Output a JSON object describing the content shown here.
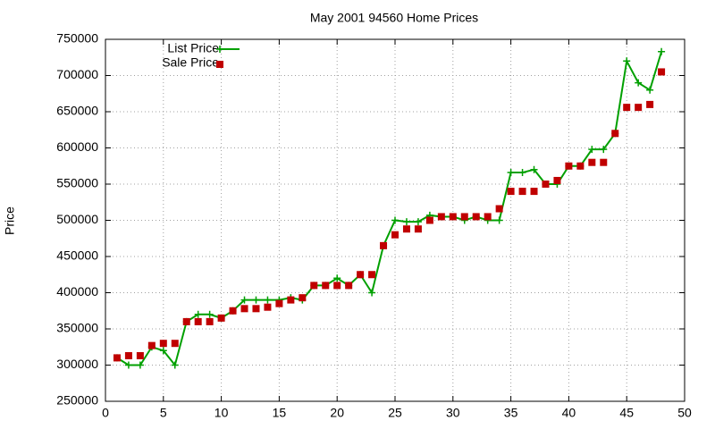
{
  "chart_data": {
    "type": "line",
    "title": "May 2001 94560 Home Prices",
    "y_label": "Price",
    "x": [
      1,
      2,
      3,
      4,
      5,
      6,
      7,
      8,
      9,
      10,
      11,
      12,
      13,
      14,
      15,
      16,
      17,
      18,
      19,
      20,
      21,
      22,
      23,
      24,
      25,
      26,
      27,
      28,
      29,
      30,
      31,
      32,
      33,
      34,
      35,
      36,
      37,
      38,
      39,
      40,
      41,
      42,
      43,
      44,
      45,
      46,
      47,
      48
    ],
    "series": [
      {
        "name": "List Price",
        "color": "#00a000",
        "style": "linespoints",
        "values": [
          310000,
          300000,
          300000,
          325000,
          320000,
          300000,
          360000,
          370000,
          370000,
          365000,
          375000,
          390000,
          390000,
          390000,
          390000,
          393000,
          390000,
          410000,
          410000,
          420000,
          410000,
          425000,
          400000,
          465000,
          500000,
          498000,
          498000,
          507000,
          505000,
          505000,
          500000,
          505000,
          500000,
          500000,
          566000,
          566000,
          570000,
          550000,
          550000,
          575000,
          575000,
          598000,
          598000,
          620000,
          720000,
          690000,
          680000,
          733000
        ]
      },
      {
        "name": "Sale Price",
        "color": "#c00000",
        "style": "points",
        "values": [
          310000,
          313000,
          313000,
          327000,
          330000,
          330000,
          360000,
          360000,
          360000,
          365000,
          375000,
          378000,
          378000,
          380000,
          385000,
          390000,
          393000,
          410000,
          410000,
          410000,
          410000,
          425000,
          425000,
          465000,
          480000,
          488000,
          488000,
          500000,
          505000,
          505000,
          505000,
          505000,
          505000,
          516000,
          540000,
          540000,
          540000,
          550000,
          555000,
          575000,
          575000,
          580000,
          580000,
          620000,
          656000,
          656000,
          660000,
          705000
        ]
      }
    ],
    "xlim": [
      0,
      50
    ],
    "xticks": [
      0,
      5,
      10,
      15,
      20,
      25,
      30,
      35,
      40,
      45,
      50
    ],
    "ylim": [
      250000,
      750000
    ],
    "yticks": [
      250000,
      300000,
      350000,
      400000,
      450000,
      500000,
      550000,
      600000,
      650000,
      700000,
      750000
    ],
    "grid": true,
    "legend": "top-left"
  }
}
